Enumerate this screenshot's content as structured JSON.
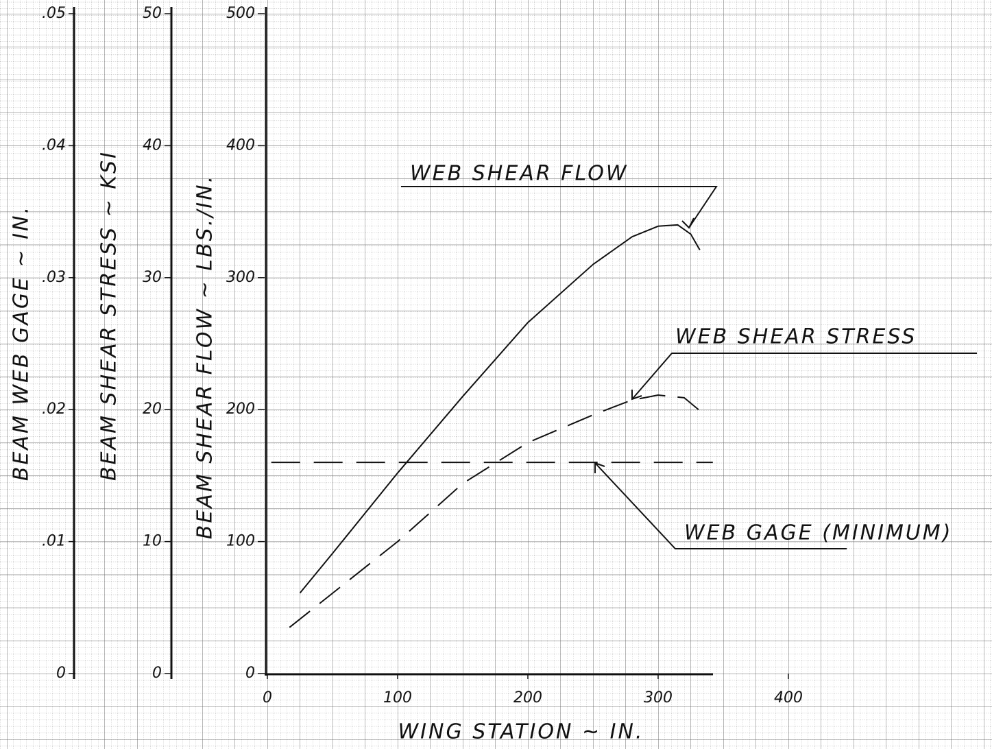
{
  "chart_data": {
    "type": "line",
    "x_label": "WING STATION ~ IN.",
    "y_label": "BEAM SHEAR FLOW ~ LBS./IN.",
    "y2_label": "BEAM SHEAR STRESS ~ KSI",
    "y3_label": "BEAM WEB GAGE ~ IN.",
    "xlim": [
      0,
      550
    ],
    "xticks": [
      0,
      100,
      200,
      300,
      400
    ],
    "ylim": [
      0,
      500
    ],
    "yticks": [
      0,
      100,
      200,
      300,
      400,
      500
    ],
    "y2lim": [
      0,
      50
    ],
    "y2ticks": [
      0,
      10,
      20,
      30,
      40,
      50
    ],
    "y3lim": [
      0,
      0.05
    ],
    "y3ticks": [
      0,
      {
        "value": 0.01,
        "label": ".01"
      },
      {
        "value": 0.02,
        "label": ".02"
      },
      {
        "value": 0.03,
        "label": ".03"
      },
      {
        "value": 0.04,
        "label": ".04"
      },
      {
        "value": 0.05,
        "label": ".05"
      }
    ],
    "series": [
      {
        "name": "WEB SHEAR FLOW",
        "color": "#111111",
        "style": "solid",
        "x": [
          25,
          50,
          100,
          150,
          200,
          250,
          280,
          300,
          315,
          325,
          332
        ],
        "values": [
          61,
          91,
          152,
          210,
          266,
          310,
          331,
          339,
          340,
          333,
          321
        ]
      },
      {
        "name": "WEB SHEAR STRESS",
        "color": "#111111",
        "style": "dashed",
        "axis": "y2",
        "x": [
          17,
          100,
          150,
          200,
          250,
          279,
          300,
          320,
          331
        ],
        "values": [
          3.5,
          10.0,
          14.4,
          17.5,
          19.6,
          20.7,
          21.1,
          20.9,
          20.0
        ]
      },
      {
        "name": "WEB GAGE (MINIMUM)",
        "color": "#111111",
        "style": "longdash",
        "axis": "y3",
        "x": [
          3,
          342
        ],
        "values": [
          0.016,
          0.016
        ]
      }
    ]
  }
}
